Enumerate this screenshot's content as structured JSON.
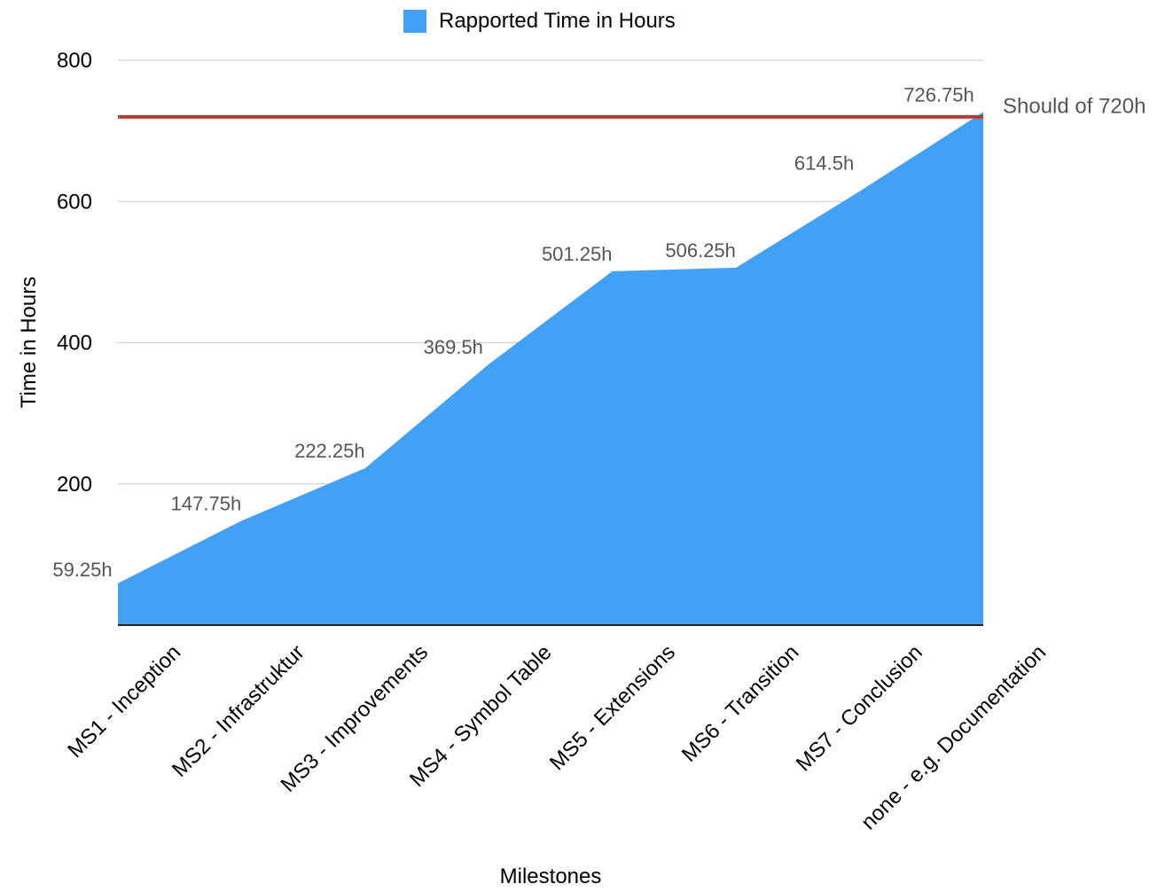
{
  "chart_data": {
    "type": "area",
    "xlabel": "Milestones",
    "ylabel": "Time in Hours",
    "ylim": [
      0,
      800
    ],
    "yticks": [
      200,
      400,
      600,
      800
    ],
    "grid": true,
    "legend_position": "top",
    "categories": [
      "MS1 - Inception",
      "MS2 - Infrastruktur",
      "MS3 - Improvements",
      "MS4 - Symbol Table",
      "MS5 - Extensions",
      "MS6 - Transition",
      "MS7 - Conclusion",
      "none - e.g. Documentation"
    ],
    "series": [
      {
        "name": "Rapported Time in Hours",
        "color": "#42a1f5",
        "values": [
          59.25,
          147.75,
          222.25,
          369.5,
          501.25,
          506.25,
          614.5,
          726.75
        ],
        "data_labels": [
          "59.25h",
          "147.75h",
          "222.25h",
          "369.5h",
          "501.25h",
          "506.25h",
          "614.5h",
          "726.75h"
        ]
      }
    ],
    "reference_line": {
      "value": 720,
      "label": "Should of 720h",
      "color": "#b03a2e"
    }
  }
}
